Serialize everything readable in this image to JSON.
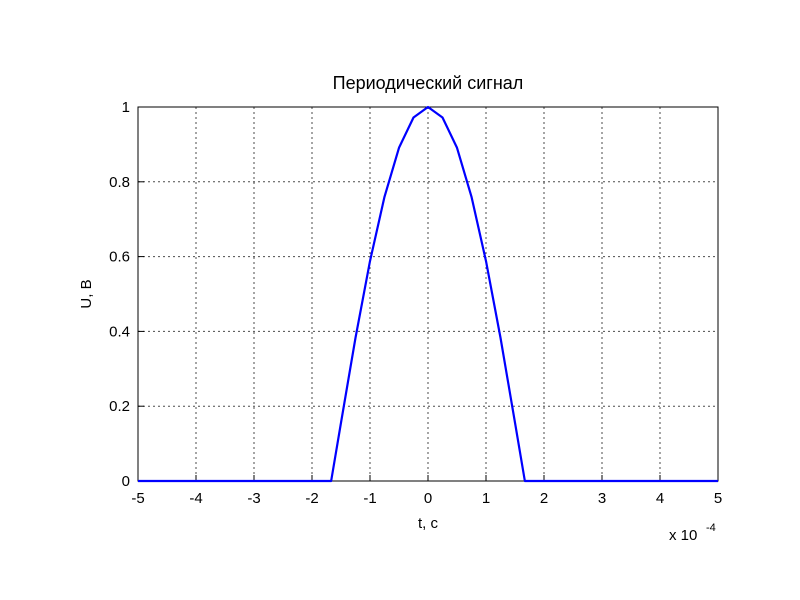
{
  "chart_data": {
    "type": "line",
    "title": "Периодический сигнал",
    "x_label": "t, c",
    "y_label": "U, B",
    "x_multiplier": {
      "base": "x 10",
      "exponent": "-4"
    },
    "x": [
      -5,
      -1.67,
      -1.5,
      -1.25,
      -1,
      -0.75,
      -0.5,
      -0.25,
      0,
      0.25,
      0.5,
      0.75,
      1,
      1.25,
      1.5,
      1.67,
      5
    ],
    "values": [
      0,
      0,
      0.156,
      0.383,
      0.588,
      0.76,
      0.891,
      0.972,
      1,
      0.972,
      0.891,
      0.76,
      0.588,
      0.383,
      0.156,
      0,
      0
    ],
    "color": "#0000ff",
    "xlim": [
      -5,
      5
    ],
    "xticks": [
      -5,
      -4,
      -3,
      -2,
      -1,
      0,
      1,
      2,
      3,
      4,
      5
    ],
    "ylim": [
      0,
      1
    ],
    "yticks": [
      0,
      0.2,
      0.4,
      0.6,
      0.8,
      1
    ],
    "grid": true
  }
}
